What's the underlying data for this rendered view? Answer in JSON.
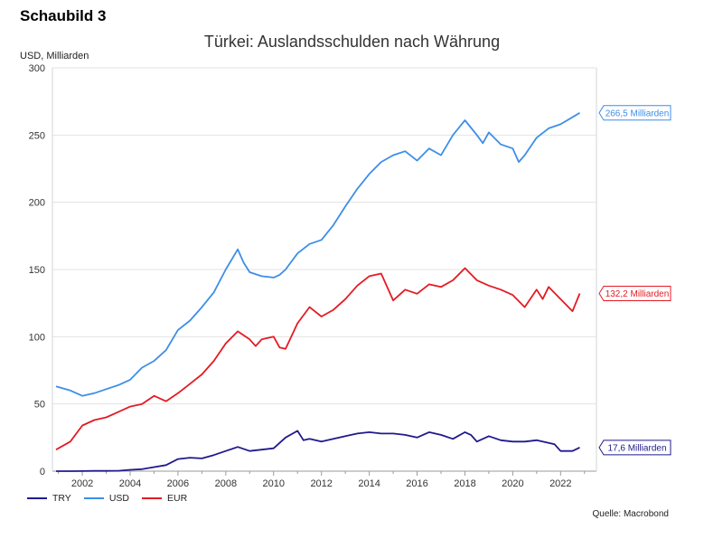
{
  "figure_label": "Schaubild 3",
  "source": "Quelle: Macrobond",
  "chart_data": {
    "type": "line",
    "title": "Türkei: Auslandsschulden nach Währung",
    "ylabel": "USD, Milliarden",
    "xlabel": "",
    "ylim": [
      0,
      300
    ],
    "xlim": [
      2000.75,
      2023.5
    ],
    "yticks": [
      0,
      50,
      100,
      150,
      200,
      250,
      300
    ],
    "xticks": [
      2002,
      2004,
      2006,
      2008,
      2010,
      2012,
      2014,
      2016,
      2018,
      2020,
      2022
    ],
    "grid": "horizontal",
    "legend_position": "bottom-left",
    "series": [
      {
        "name": "TRY",
        "color": "#1f1a8c",
        "end_label": "17,6 Milliarden",
        "x": [
          2000.9,
          2001.5,
          2002.0,
          2002.5,
          2003.0,
          2003.5,
          2004.0,
          2004.5,
          2005.0,
          2005.5,
          2006.0,
          2006.5,
          2007.0,
          2007.5,
          2008.0,
          2008.5,
          2009.0,
          2009.5,
          2010.0,
          2010.5,
          2011.0,
          2011.25,
          2011.5,
          2012.0,
          2012.5,
          2013.0,
          2013.5,
          2014.0,
          2014.5,
          2015.0,
          2015.5,
          2016.0,
          2016.5,
          2017.0,
          2017.5,
          2018.0,
          2018.25,
          2018.5,
          2019.0,
          2019.5,
          2020.0,
          2020.5,
          2021.0,
          2021.5,
          2021.75,
          2022.0,
          2022.5,
          2022.8
        ],
        "values": [
          0,
          0,
          0.1,
          0.2,
          0.2,
          0.3,
          1,
          1.5,
          3,
          4.5,
          9,
          10,
          9.5,
          12,
          15,
          18,
          15,
          16,
          17,
          25,
          30,
          23,
          24,
          22,
          24,
          26,
          28,
          29,
          28,
          28,
          27,
          25,
          29,
          27,
          24,
          29,
          27,
          22,
          26,
          23,
          22,
          22,
          23,
          21,
          20,
          15,
          15,
          17.6
        ]
      },
      {
        "name": "USD",
        "color": "#3d8ee8",
        "end_label": "266,5 Milliarden",
        "x": [
          2000.9,
          2001.5,
          2002.0,
          2002.5,
          2003.0,
          2003.5,
          2004.0,
          2004.5,
          2005.0,
          2005.5,
          2006.0,
          2006.5,
          2007.0,
          2007.5,
          2008.0,
          2008.5,
          2008.75,
          2009.0,
          2009.5,
          2010.0,
          2010.25,
          2010.5,
          2011.0,
          2011.5,
          2012.0,
          2012.5,
          2013.0,
          2013.5,
          2014.0,
          2014.5,
          2015.0,
          2015.5,
          2016.0,
          2016.5,
          2017.0,
          2017.5,
          2018.0,
          2018.5,
          2018.75,
          2019.0,
          2019.5,
          2020.0,
          2020.25,
          2020.5,
          2021.0,
          2021.5,
          2022.0,
          2022.8
        ],
        "values": [
          63,
          60,
          56,
          58,
          61,
          64,
          68,
          77,
          82,
          90,
          105,
          112,
          122,
          133,
          150,
          165,
          155,
          148,
          145,
          144,
          146,
          150,
          162,
          169,
          172,
          183,
          197,
          210,
          221,
          230,
          235,
          238,
          231,
          240,
          235,
          250,
          261,
          250,
          244,
          252,
          243,
          240,
          230,
          235,
          248,
          255,
          258,
          266.5
        ]
      },
      {
        "name": "EUR",
        "color": "#e31b23",
        "end_label": "132,2 Milliarden",
        "x": [
          2000.9,
          2001.5,
          2002.0,
          2002.5,
          2003.0,
          2003.5,
          2004.0,
          2004.5,
          2005.0,
          2005.5,
          2006.0,
          2006.5,
          2007.0,
          2007.5,
          2008.0,
          2008.5,
          2009.0,
          2009.25,
          2009.5,
          2010.0,
          2010.25,
          2010.5,
          2011.0,
          2011.5,
          2012.0,
          2012.5,
          2013.0,
          2013.5,
          2014.0,
          2014.5,
          2015.0,
          2015.5,
          2016.0,
          2016.5,
          2017.0,
          2017.5,
          2018.0,
          2018.5,
          2019.0,
          2019.5,
          2020.0,
          2020.5,
          2021.0,
          2021.25,
          2021.5,
          2022.0,
          2022.5,
          2022.8
        ],
        "values": [
          16,
          22,
          34,
          38,
          40,
          44,
          48,
          50,
          56,
          52,
          58,
          65,
          72,
          82,
          95,
          104,
          98,
          93,
          98,
          100,
          92,
          91,
          110,
          122,
          115,
          120,
          128,
          138,
          145,
          147,
          127,
          135,
          132,
          139,
          137,
          142,
          151,
          142,
          138,
          135,
          131,
          122,
          135,
          128,
          137,
          128,
          119,
          132.2
        ]
      }
    ]
  }
}
